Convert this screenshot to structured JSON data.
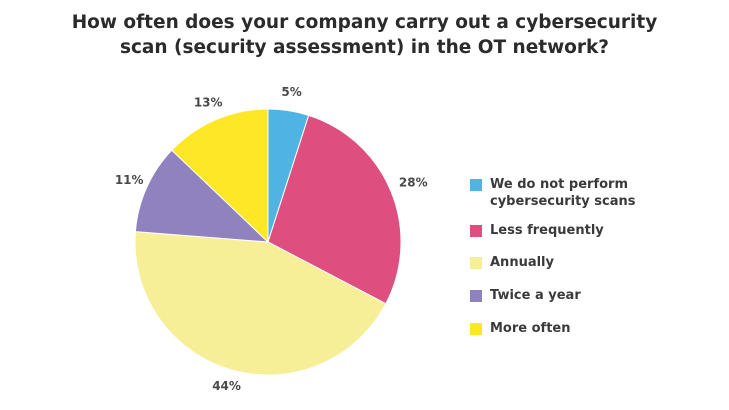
{
  "title_lines": [
    "How often does your company carry out a cybersecurity",
    "scan (security assessment) in the OT network?"
  ],
  "chart_data": {
    "type": "pie",
    "title": "How often does your company carry out a cybersecurity scan (security assessment) in the OT network?",
    "legend_position": "right",
    "slices": [
      {
        "label": "We do not perform cybersecurity scans",
        "value": 5,
        "value_label": "5%",
        "color": "#4fb3e3"
      },
      {
        "label": "Less frequently",
        "value": 28,
        "value_label": "28%",
        "color": "#de4f80"
      },
      {
        "label": "Annually",
        "value": 44,
        "value_label": "44%",
        "color": "#f7ef98"
      },
      {
        "label": "Twice a year",
        "value": 11,
        "value_label": "11%",
        "color": "#8f82bf"
      },
      {
        "label": "More often",
        "value": 13,
        "value_label": "13%",
        "color": "#fde726"
      }
    ]
  },
  "legend": {
    "items": [
      {
        "label": "We do not perform\ncybersecurity scans",
        "color": "#4fb3e3"
      },
      {
        "label": "Less frequently",
        "color": "#de4f80"
      },
      {
        "label": "Annually",
        "color": "#f7ef98"
      },
      {
        "label": "Twice a year",
        "color": "#8f82bf"
      },
      {
        "label": "More often",
        "color": "#fde726"
      }
    ]
  }
}
